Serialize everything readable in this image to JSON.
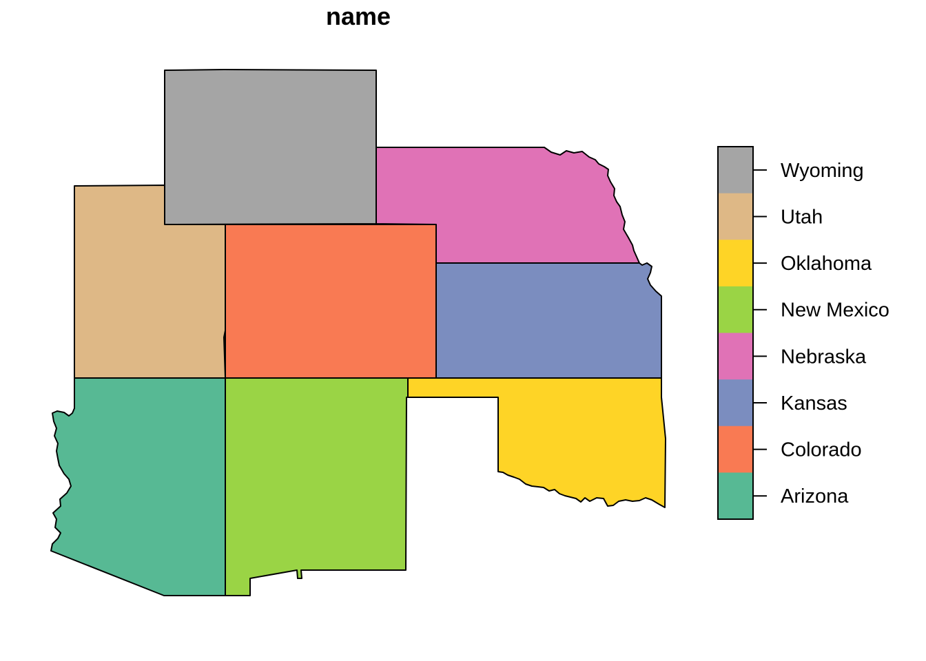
{
  "map": {
    "title": "name",
    "states": [
      {
        "key": "wyoming",
        "color": "#A5A5A5"
      },
      {
        "key": "utah",
        "color": "#DEB886"
      },
      {
        "key": "colorado",
        "color": "#F97A53"
      },
      {
        "key": "nebraska",
        "color": "#E072B6"
      },
      {
        "key": "kansas",
        "color": "#7B8DBF"
      },
      {
        "key": "arizona",
        "color": "#57B994"
      },
      {
        "key": "new-mexico",
        "color": "#9AD445"
      },
      {
        "key": "oklahoma",
        "color": "#FED426"
      }
    ]
  },
  "legend": {
    "items": [
      {
        "label": "Wyoming",
        "color": "#A5A5A5"
      },
      {
        "label": "Utah",
        "color": "#DEB886"
      },
      {
        "label": "Oklahoma",
        "color": "#FED426"
      },
      {
        "label": "New Mexico",
        "color": "#9AD445"
      },
      {
        "label": "Nebraska",
        "color": "#E072B6"
      },
      {
        "label": "Kansas",
        "color": "#7B8DBF"
      },
      {
        "label": "Colorado",
        "color": "#F97A53"
      },
      {
        "label": "Arizona",
        "color": "#57B994"
      }
    ]
  }
}
